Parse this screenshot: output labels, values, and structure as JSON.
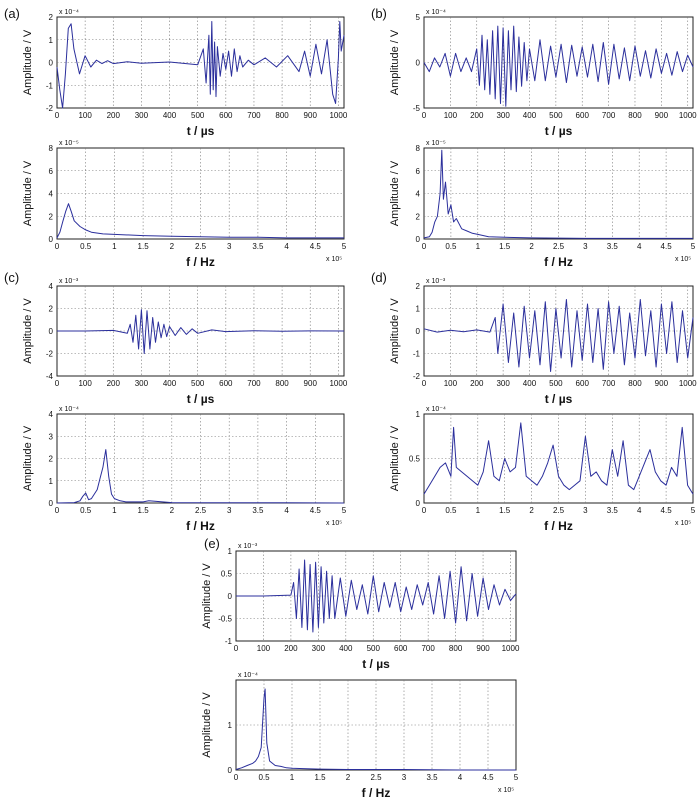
{
  "panel_labels": [
    "(a)",
    "(b)",
    "(c)",
    "(d)",
    "(e)"
  ],
  "style": {
    "line_color": "#2b2f9c",
    "grid_color": "#7a7a7a",
    "axis_color": "#222222"
  },
  "time_axis": {
    "xlabel": "t / µs",
    "ylabel": "Amplitude / V",
    "xticks": [
      0,
      100,
      200,
      300,
      400,
      500,
      600,
      700,
      800,
      900,
      1000
    ],
    "xlim": [
      0,
      1020
    ]
  },
  "freq_axis": {
    "xlabel": "f / Hz",
    "ylabel": "Amplitude / V",
    "xticks": [
      0,
      0.5,
      1,
      1.5,
      2,
      2.5,
      3,
      3.5,
      4,
      4.5,
      5
    ],
    "xlim": [
      0,
      5
    ],
    "x_multiplier": "x 10⁵"
  },
  "chart_data": [
    {
      "id": "a-time",
      "panel": "(a)",
      "type": "line",
      "xlabel": "t / µs",
      "ylabel": "Amplitude / V",
      "multiplier": "x 10⁻⁴",
      "ylim": [
        -2,
        2
      ],
      "yticks": [
        -2,
        -1,
        0,
        1,
        2
      ],
      "grid": true,
      "series": [
        {
          "x": [
            0,
            10,
            20,
            30,
            40,
            50,
            60,
            80,
            100,
            120,
            140,
            160,
            180,
            200,
            250,
            300,
            400,
            500,
            520,
            530,
            540,
            545,
            550,
            555,
            560,
            565,
            570,
            580,
            590,
            600,
            610,
            620,
            630,
            640,
            650,
            660,
            680,
            700,
            740,
            780,
            820,
            860,
            880,
            900,
            920,
            940,
            960,
            980,
            990,
            1000,
            1005,
            1010,
            1020
          ],
          "y": [
            -0.2,
            -1.2,
            -2,
            -0.5,
            1.5,
            1.7,
            0.6,
            -0.5,
            0.3,
            -0.2,
            0.1,
            -0.05,
            0.08,
            -0.05,
            0.03,
            -0.03,
            0.02,
            -0.1,
            0.6,
            -0.9,
            1.2,
            -1.4,
            1.8,
            -1.2,
            0.9,
            -1.5,
            0.7,
            -0.6,
            0.4,
            -0.3,
            0.5,
            -0.6,
            0.6,
            -0.4,
            0.3,
            -0.2,
            0.1,
            -0.1,
            0.2,
            -0.2,
            0.3,
            -0.4,
            0.5,
            -0.6,
            0.8,
            -0.5,
            1,
            -1.4,
            -1.8,
            0.2,
            1.8,
            0.5,
            1.2
          ]
        }
      ]
    },
    {
      "id": "b-time",
      "panel": "(b)",
      "type": "line",
      "xlabel": "t / µs",
      "ylabel": "Amplitude / V",
      "multiplier": "x 10⁻⁴",
      "ylim": [
        -5,
        5
      ],
      "yticks": [
        -5,
        0,
        5
      ],
      "grid": true,
      "series": [
        {
          "x": [
            0,
            20,
            40,
            60,
            80,
            100,
            120,
            140,
            160,
            180,
            200,
            210,
            220,
            230,
            240,
            250,
            260,
            270,
            280,
            290,
            300,
            310,
            320,
            330,
            340,
            350,
            360,
            370,
            380,
            390,
            400,
            420,
            440,
            460,
            480,
            500,
            520,
            540,
            560,
            580,
            600,
            620,
            640,
            660,
            680,
            700,
            720,
            740,
            760,
            780,
            800,
            820,
            840,
            860,
            880,
            900,
            920,
            940,
            960,
            980,
            1000,
            1020
          ],
          "y": [
            0,
            -1,
            0.5,
            -0.5,
            1,
            -1.5,
            1,
            -1,
            0.5,
            -1,
            1.5,
            -2.5,
            3,
            -3,
            2.5,
            -3.5,
            3.5,
            -4,
            4,
            -4.5,
            3.8,
            -4.8,
            3.5,
            -3,
            4,
            -3.2,
            2.8,
            -2.6,
            2.2,
            -2,
            1.5,
            -2,
            2.5,
            -2,
            1.8,
            -1.6,
            2,
            -2.2,
            1.9,
            -1.5,
            1.7,
            -1.6,
            2,
            -2.1,
            2.2,
            -2.4,
            2,
            -1.8,
            1.6,
            -2,
            1.8,
            -1.5,
            1.3,
            -1.7,
            1.5,
            -1.2,
            1,
            -1.4,
            1.2,
            -1,
            0.8,
            -0.5
          ]
        }
      ]
    },
    {
      "id": "a-freq",
      "panel": "(a)",
      "type": "line",
      "xlabel": "f / Hz",
      "ylabel": "Amplitude / V",
      "multiplier": "x 10⁻⁵",
      "x_multiplier": "x 10⁵",
      "ylim": [
        0,
        8
      ],
      "yticks": [
        0,
        2,
        4,
        6,
        8
      ],
      "grid": true,
      "series": [
        {
          "x": [
            0,
            0.05,
            0.1,
            0.15,
            0.2,
            0.25,
            0.3,
            0.4,
            0.5,
            0.6,
            0.8,
            1,
            1.5,
            2,
            2.5,
            3,
            3.5,
            4,
            4.5,
            5
          ],
          "y": [
            0.1,
            0.6,
            1.5,
            2.4,
            3.1,
            2.4,
            1.6,
            1.1,
            0.8,
            0.6,
            0.45,
            0.4,
            0.3,
            0.25,
            0.2,
            0.15,
            0.15,
            0.1,
            0.1,
            0.1
          ]
        }
      ]
    },
    {
      "id": "b-freq",
      "panel": "(b)",
      "type": "line",
      "xlabel": "f / Hz",
      "ylabel": "Amplitude / V",
      "multiplier": "x 10⁻⁵",
      "x_multiplier": "x 10⁵",
      "ylim": [
        0,
        8
      ],
      "yticks": [
        0,
        2,
        4,
        6,
        8
      ],
      "grid": true,
      "series": [
        {
          "x": [
            0,
            0.1,
            0.15,
            0.2,
            0.25,
            0.3,
            0.33,
            0.36,
            0.4,
            0.45,
            0.5,
            0.55,
            0.6,
            0.7,
            0.8,
            0.9,
            1,
            1.2,
            1.5,
            2,
            3,
            4,
            5
          ],
          "y": [
            0.1,
            0.2,
            0.6,
            1.5,
            2,
            4,
            7.8,
            3.5,
            5,
            2.2,
            3,
            1.5,
            1.8,
            0.9,
            0.7,
            0.5,
            0.4,
            0.2,
            0.15,
            0.1,
            0.05,
            0.05,
            0.05
          ]
        }
      ]
    },
    {
      "id": "c-time",
      "panel": "(c)",
      "type": "line",
      "xlabel": "t / µs",
      "ylabel": "Amplitude / V",
      "multiplier": "x 10⁻³",
      "ylim": [
        -4,
        4
      ],
      "yticks": [
        -4,
        -2,
        0,
        2,
        4
      ],
      "grid": true,
      "series": [
        {
          "x": [
            0,
            100,
            200,
            250,
            260,
            270,
            280,
            290,
            300,
            310,
            320,
            330,
            340,
            350,
            360,
            370,
            380,
            390,
            400,
            420,
            440,
            460,
            480,
            500,
            550,
            600,
            700,
            800,
            900,
            1020
          ],
          "y": [
            0,
            0,
            0.05,
            -0.2,
            0.6,
            -1,
            1.4,
            -1.6,
            1.9,
            -2,
            1.8,
            -1.6,
            1.2,
            -1,
            0.8,
            -0.6,
            0.6,
            -0.5,
            0.4,
            -0.4,
            0.3,
            -0.3,
            0.2,
            -0.2,
            0.1,
            -0.05,
            0.03,
            -0.02,
            0.01,
            0
          ]
        }
      ]
    },
    {
      "id": "d-time",
      "panel": "(d)",
      "type": "line",
      "xlabel": "t / µs",
      "ylabel": "Amplitude / V",
      "multiplier": "x 10⁻³",
      "ylim": [
        -2,
        2
      ],
      "yticks": [
        -2,
        -1,
        0,
        1,
        2
      ],
      "grid": true,
      "series": [
        {
          "x": [
            0,
            50,
            100,
            150,
            200,
            250,
            270,
            280,
            300,
            320,
            340,
            360,
            380,
            400,
            420,
            440,
            460,
            480,
            500,
            520,
            540,
            560,
            580,
            600,
            620,
            640,
            660,
            680,
            700,
            720,
            740,
            760,
            780,
            800,
            820,
            840,
            860,
            880,
            900,
            920,
            940,
            960,
            980,
            1000,
            1020
          ],
          "y": [
            0.1,
            -0.05,
            0.03,
            -0.03,
            0.05,
            -0.05,
            0.6,
            -1,
            1.2,
            -1.4,
            0.8,
            -1.6,
            1.1,
            -1.2,
            0.9,
            -1.5,
            1.3,
            -1.8,
            1,
            -1.2,
            1.4,
            -1.6,
            0.9,
            -1.3,
            1.2,
            -1.4,
            1,
            -1.7,
            1.3,
            -1,
            1.1,
            -1.5,
            0.8,
            -1.2,
            1.4,
            -1.1,
            0.9,
            -1.6,
            1.2,
            -1,
            1.3,
            -1.4,
            0.9,
            -1.2,
            0.6
          ]
        }
      ]
    },
    {
      "id": "c-freq",
      "panel": "(c)",
      "type": "line",
      "xlabel": "f / Hz",
      "ylabel": "Amplitude / V",
      "multiplier": "x 10⁻⁴",
      "x_multiplier": "x 10⁵",
      "ylim": [
        0,
        4
      ],
      "yticks": [
        0,
        1,
        2,
        3,
        4
      ],
      "grid": true,
      "series": [
        {
          "x": [
            0,
            0.3,
            0.4,
            0.45,
            0.5,
            0.55,
            0.6,
            0.7,
            0.75,
            0.8,
            0.85,
            0.9,
            0.95,
            1,
            1.1,
            1.2,
            1.5,
            1.6,
            2,
            3,
            4,
            5
          ],
          "y": [
            0,
            0.02,
            0.1,
            0.3,
            0.45,
            0.15,
            0.2,
            0.6,
            1.1,
            1.6,
            2.4,
            1.2,
            0.4,
            0.2,
            0.1,
            0.05,
            0.05,
            0.1,
            0.02,
            0.01,
            0.01,
            0
          ]
        }
      ]
    },
    {
      "id": "d-freq",
      "panel": "(d)",
      "type": "line",
      "xlabel": "f / Hz",
      "ylabel": "Amplitude / V",
      "multiplier": "x 10⁻⁴",
      "x_multiplier": "x 10⁵",
      "ylim": [
        0,
        1
      ],
      "yticks": [
        0,
        0.5,
        1
      ],
      "grid": true,
      "series": [
        {
          "x": [
            0,
            0.1,
            0.2,
            0.3,
            0.4,
            0.5,
            0.55,
            0.6,
            0.7,
            0.8,
            0.9,
            1,
            1.1,
            1.2,
            1.3,
            1.4,
            1.5,
            1.6,
            1.7,
            1.8,
            1.9,
            2,
            2.1,
            2.2,
            2.3,
            2.4,
            2.5,
            2.6,
            2.7,
            2.8,
            2.9,
            3,
            3.1,
            3.2,
            3.3,
            3.4,
            3.5,
            3.6,
            3.7,
            3.8,
            3.9,
            4,
            4.1,
            4.2,
            4.3,
            4.4,
            4.5,
            4.6,
            4.7,
            4.8,
            4.9,
            5
          ],
          "y": [
            0.1,
            0.2,
            0.3,
            0.4,
            0.45,
            0.3,
            0.85,
            0.4,
            0.35,
            0.3,
            0.25,
            0.2,
            0.35,
            0.7,
            0.3,
            0.25,
            0.5,
            0.35,
            0.4,
            0.9,
            0.3,
            0.25,
            0.2,
            0.3,
            0.45,
            0.65,
            0.3,
            0.2,
            0.15,
            0.2,
            0.25,
            0.75,
            0.3,
            0.35,
            0.25,
            0.2,
            0.6,
            0.3,
            0.7,
            0.2,
            0.15,
            0.3,
            0.45,
            0.6,
            0.35,
            0.25,
            0.2,
            0.4,
            0.3,
            0.85,
            0.2,
            0.1
          ]
        }
      ]
    },
    {
      "id": "e-time",
      "panel": "(e)",
      "type": "line",
      "xlabel": "t / µs",
      "ylabel": "Amplitude / V",
      "multiplier": "x 10⁻³",
      "ylim": [
        -1,
        1
      ],
      "yticks": [
        -1,
        -0.5,
        0,
        0.5,
        1
      ],
      "grid": true,
      "series": [
        {
          "x": [
            0,
            100,
            200,
            210,
            220,
            230,
            240,
            250,
            260,
            270,
            280,
            290,
            300,
            310,
            320,
            330,
            340,
            350,
            360,
            380,
            400,
            420,
            440,
            460,
            480,
            500,
            520,
            540,
            560,
            580,
            600,
            620,
            640,
            660,
            680,
            700,
            720,
            740,
            760,
            780,
            800,
            820,
            840,
            860,
            880,
            900,
            920,
            940,
            960,
            980,
            1000,
            1020
          ],
          "y": [
            0,
            0,
            0.02,
            0.3,
            -0.5,
            0.6,
            -0.7,
            0.8,
            -0.75,
            0.7,
            -0.8,
            0.75,
            -0.7,
            0.65,
            -0.6,
            0.55,
            -0.5,
            0.45,
            -0.5,
            0.4,
            -0.45,
            0.35,
            -0.3,
            0.25,
            -0.4,
            0.45,
            -0.35,
            0.3,
            -0.25,
            0.3,
            -0.35,
            0.2,
            -0.3,
            0.25,
            -0.2,
            0.3,
            -0.4,
            0.45,
            -0.5,
            0.55,
            -0.6,
            0.65,
            -0.55,
            0.5,
            -0.45,
            0.4,
            -0.3,
            0.25,
            -0.2,
            0.15,
            -0.1,
            0.05
          ]
        }
      ]
    },
    {
      "id": "e-freq",
      "panel": "(e)",
      "type": "line",
      "xlabel": "f / Hz",
      "ylabel": "Amplitude / V",
      "multiplier": "x 10⁻⁴",
      "x_multiplier": "x 10⁵",
      "ylim": [
        0,
        2
      ],
      "yticks": [
        0,
        1
      ],
      "grid": true,
      "series": [
        {
          "x": [
            0,
            0.1,
            0.2,
            0.3,
            0.35,
            0.4,
            0.45,
            0.5,
            0.52,
            0.55,
            0.6,
            0.65,
            0.7,
            0.8,
            0.9,
            1,
            1.2,
            1.5,
            2,
            3,
            4,
            5
          ],
          "y": [
            0.01,
            0.05,
            0.1,
            0.15,
            0.2,
            0.3,
            0.5,
            1.6,
            1.8,
            0.6,
            0.2,
            0.15,
            0.1,
            0.08,
            0.05,
            0.04,
            0.03,
            0.02,
            0.01,
            0.01,
            0,
            0
          ]
        }
      ]
    }
  ]
}
